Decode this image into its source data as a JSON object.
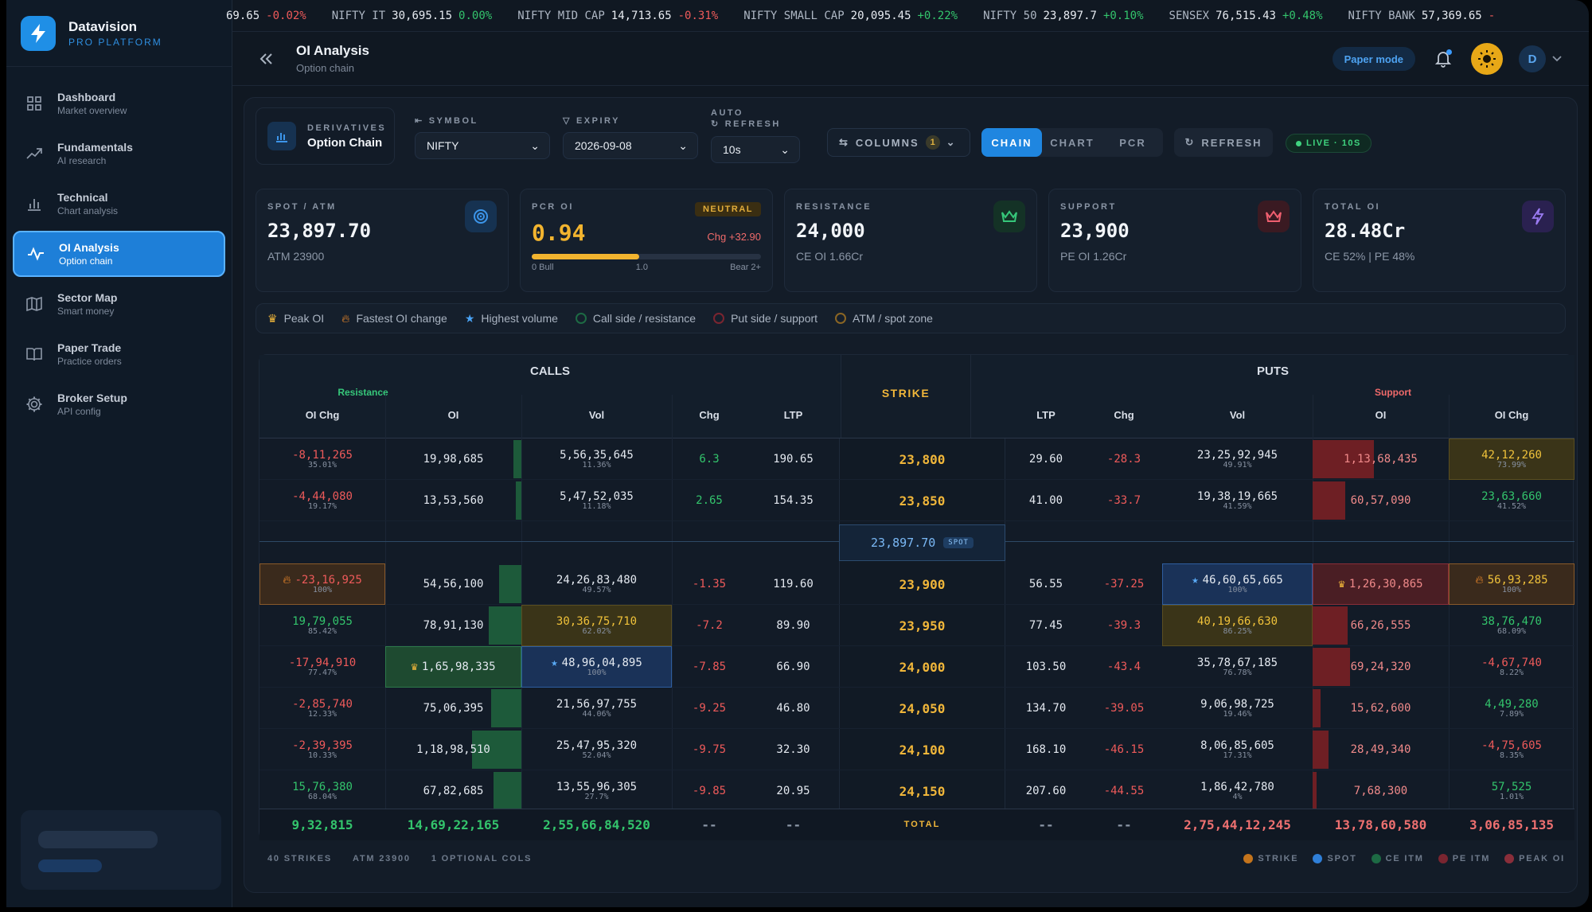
{
  "brand": {
    "name": "Datavision",
    "sub": "PRO PLATFORM"
  },
  "nav": [
    {
      "label": "Dashboard",
      "sub": "Market overview",
      "icon": "grid-icon"
    },
    {
      "label": "Fundamentals",
      "sub": "AI research",
      "icon": "trend-icon"
    },
    {
      "label": "Technical",
      "sub": "Chart analysis",
      "icon": "bar-chart-icon"
    },
    {
      "label": "OI Analysis",
      "sub": "Option chain",
      "icon": "pulse-icon",
      "active": true
    },
    {
      "label": "Sector Map",
      "sub": "Smart money",
      "icon": "map-icon"
    },
    {
      "label": "Paper Trade",
      "sub": "Practice orders",
      "icon": "book-icon"
    },
    {
      "label": "Broker Setup",
      "sub": "API config",
      "icon": "gear-icon"
    }
  ],
  "ticker": [
    {
      "name": "",
      "price": "69.65",
      "change": "-0.02%",
      "dir": "neg"
    },
    {
      "name": "NIFTY IT",
      "price": "30,695.15",
      "change": "0.00%",
      "dir": "pos"
    },
    {
      "name": "NIFTY MID CAP",
      "price": "14,713.65",
      "change": "-0.31%",
      "dir": "neg"
    },
    {
      "name": "NIFTY SMALL CAP",
      "price": "20,095.45",
      "change": "+0.22%",
      "dir": "pos"
    },
    {
      "name": "NIFTY 50",
      "price": "23,897.7",
      "change": "+0.10%",
      "dir": "pos"
    },
    {
      "name": "SENSEX",
      "price": "76,515.43",
      "change": "+0.48%",
      "dir": "pos"
    },
    {
      "name": "NIFTY BANK",
      "price": "57,369.65",
      "change": "-",
      "dir": "neg"
    }
  ],
  "header": {
    "title": "OI Analysis",
    "subtitle": "Option chain",
    "paper_mode": "Paper mode",
    "avatar": "D"
  },
  "controls": {
    "deriv_cap": "DERIVATIVES",
    "deriv_title": "Option Chain",
    "symbol_cap": "SYMBOL",
    "symbol": "NIFTY",
    "expiry_cap": "EXPIRY",
    "expiry": "2026-09-08",
    "auto_cap_1": "AUTO",
    "auto_cap_2": "REFRESH",
    "auto": "10s",
    "columns": "COLUMNS",
    "columns_count": "1",
    "views": [
      "CHAIN",
      "CHART",
      "PCR"
    ],
    "refresh": "REFRESH",
    "live": "LIVE · 10S"
  },
  "cards": {
    "spot": {
      "cap": "SPOT / ATM",
      "value": "23,897.70",
      "sub": "ATM 23900"
    },
    "pcr": {
      "cap": "PCR OI",
      "badge": "NEUTRAL",
      "value": "0.94",
      "chg": "Chg +32.90",
      "fill": 0.47,
      "lbl_left": "0 Bull",
      "lbl_mid": "1.0",
      "lbl_right": "Bear 2+"
    },
    "resistance": {
      "cap": "RESISTANCE",
      "value": "24,000",
      "sub": "CE OI 1.66Cr"
    },
    "support": {
      "cap": "SUPPORT",
      "value": "23,900",
      "sub": "PE OI 1.26Cr"
    },
    "total": {
      "cap": "TOTAL OI",
      "value": "28.48Cr",
      "sub": "CE 52% | PE 48%"
    }
  },
  "legend": [
    "Peak OI",
    "Fastest OI change",
    "Highest volume",
    "Call side / resistance",
    "Put side / support",
    "ATM / spot zone"
  ],
  "table": {
    "calls": "CALLS",
    "puts": "PUTS",
    "resistance": "Resistance",
    "support": "Support",
    "strike": "STRIKE",
    "call_cols": [
      "OI Chg",
      "OI",
      "Vol",
      "Chg",
      "LTP"
    ],
    "put_cols": [
      "LTP",
      "Chg",
      "Vol",
      "OI",
      "OI Chg"
    ],
    "spot": "23,897.70",
    "spot_tag": "SPOT",
    "rows": [
      {
        "ce_oichg": "-8,11,265",
        "ce_oichg_pct": "35.01%",
        "ce_oi": "19,98,685",
        "ce_oi_f": 0.12,
        "ce_vol": "5,56,35,645",
        "ce_vol_pct": "11.36%",
        "ce_chg": "6.3",
        "ce_ltp": "190.65",
        "strike": "23,800",
        "pe_ltp": "29.60",
        "pe_chg": "-28.3",
        "pe_vol": "23,25,92,945",
        "pe_vol_pct": "49.91%",
        "pe_oi": "1,13,68,435",
        "pe_oi_f": 0.9,
        "pe_oichg": "42,12,260",
        "pe_oichg_pct": "73.99%"
      },
      {
        "ce_oichg": "-4,44,080",
        "ce_oichg_pct": "19.17%",
        "ce_oi": "13,53,560",
        "ce_oi_f": 0.08,
        "ce_vol": "5,47,52,035",
        "ce_vol_pct": "11.18%",
        "ce_chg": "2.65",
        "ce_ltp": "154.35",
        "strike": "23,850",
        "pe_ltp": "41.00",
        "pe_chg": "-33.7",
        "pe_vol": "19,38,19,665",
        "pe_vol_pct": "41.59%",
        "pe_oi": "60,57,090",
        "pe_oi_f": 0.48,
        "pe_oichg": "23,63,660",
        "pe_oichg_pct": "41.52%"
      },
      {
        "ce_oichg": "-23,16,925",
        "ce_oichg_pct": "100%",
        "ce_oi": "54,56,100",
        "ce_oi_f": 0.33,
        "ce_vol": "24,26,83,480",
        "ce_vol_pct": "49.57%",
        "ce_chg": "-1.35",
        "ce_ltp": "119.60",
        "strike": "23,900",
        "pe_ltp": "56.55",
        "pe_chg": "-37.25",
        "pe_vol": "46,60,65,665",
        "pe_vol_pct": "100%",
        "pe_oi": "1,26,30,865",
        "pe_oi_f": 1.0,
        "pe_oichg": "56,93,285",
        "pe_oichg_pct": "100%"
      },
      {
        "ce_oichg": "19,79,055",
        "ce_oichg_pct": "85.42%",
        "ce_oi": "78,91,130",
        "ce_oi_f": 0.48,
        "ce_vol": "30,36,75,710",
        "ce_vol_pct": "62.02%",
        "ce_chg": "-7.2",
        "ce_ltp": "89.90",
        "strike": "23,950",
        "pe_ltp": "77.45",
        "pe_chg": "-39.3",
        "pe_vol": "40,19,66,630",
        "pe_vol_pct": "86.25%",
        "pe_oi": "66,26,555",
        "pe_oi_f": 0.52,
        "pe_oichg": "38,76,470",
        "pe_oichg_pct": "68.09%"
      },
      {
        "ce_oichg": "-17,94,910",
        "ce_oichg_pct": "77.47%",
        "ce_oi": "1,65,98,335",
        "ce_oi_f": 1.0,
        "ce_vol": "48,96,04,895",
        "ce_vol_pct": "100%",
        "ce_chg": "-7.85",
        "ce_ltp": "66.90",
        "strike": "24,000",
        "pe_ltp": "103.50",
        "pe_chg": "-43.4",
        "pe_vol": "35,78,67,185",
        "pe_vol_pct": "76.78%",
        "pe_oi": "69,24,320",
        "pe_oi_f": 0.55,
        "pe_oichg": "-4,67,740",
        "pe_oichg_pct": "8.22%"
      },
      {
        "ce_oichg": "-2,85,740",
        "ce_oichg_pct": "12.33%",
        "ce_oi": "75,06,395",
        "ce_oi_f": 0.45,
        "ce_vol": "21,56,97,755",
        "ce_vol_pct": "44.06%",
        "ce_chg": "-9.25",
        "ce_ltp": "46.80",
        "strike": "24,050",
        "pe_ltp": "134.70",
        "pe_chg": "-39.05",
        "pe_vol": "9,06,98,725",
        "pe_vol_pct": "19.46%",
        "pe_oi": "15,62,600",
        "pe_oi_f": 0.12,
        "pe_oichg": "4,49,280",
        "pe_oichg_pct": "7.89%"
      },
      {
        "ce_oichg": "-2,39,395",
        "ce_oichg_pct": "10.33%",
        "ce_oi": "1,18,98,510",
        "ce_oi_f": 0.72,
        "ce_vol": "25,47,95,320",
        "ce_vol_pct": "52.04%",
        "ce_chg": "-9.75",
        "ce_ltp": "32.30",
        "strike": "24,100",
        "pe_ltp": "168.10",
        "pe_chg": "-46.15",
        "pe_vol": "8,06,85,605",
        "pe_vol_pct": "17.31%",
        "pe_oi": "28,49,340",
        "pe_oi_f": 0.23,
        "pe_oichg": "-4,75,605",
        "pe_oichg_pct": "8.35%"
      },
      {
        "ce_oichg": "15,76,380",
        "ce_oichg_pct": "68.04%",
        "ce_oi": "67,82,685",
        "ce_oi_f": 0.41,
        "ce_vol": "13,55,96,305",
        "ce_vol_pct": "27.7%",
        "ce_chg": "-9.85",
        "ce_ltp": "20.95",
        "strike": "24,150",
        "pe_ltp": "207.60",
        "pe_chg": "-44.55",
        "pe_vol": "1,86,42,780",
        "pe_vol_pct": "4%",
        "pe_oi": "7,68,300",
        "pe_oi_f": 0.06,
        "pe_oichg": "57,525",
        "pe_oichg_pct": "1.01%"
      }
    ],
    "totals": {
      "ce_oichg": "9,32,815",
      "ce_oi": "14,69,22,165",
      "ce_vol": "2,55,66,84,520",
      "ce_chg": "--",
      "ce_ltp": "--",
      "label": "TOTAL",
      "pe_ltp": "--",
      "pe_chg": "--",
      "pe_vol": "2,75,44,12,245",
      "pe_oi": "13,78,60,580",
      "pe_oichg": "3,06,85,135"
    }
  },
  "footer": {
    "strikes": "40 STRIKES",
    "atm": "ATM 23900",
    "optional": "1 OPTIONAL COLS",
    "keys": [
      "STRIKE",
      "SPOT",
      "CE ITM",
      "PE ITM",
      "PEAK OI"
    ]
  },
  "colors": {
    "accent": "#1f86e0",
    "pos": "#33c46c",
    "neg": "#ee5a5a",
    "strike": "#f0b63a",
    "ce_itm": "#1d5a3a",
    "pe_itm": "#6e1f24"
  }
}
